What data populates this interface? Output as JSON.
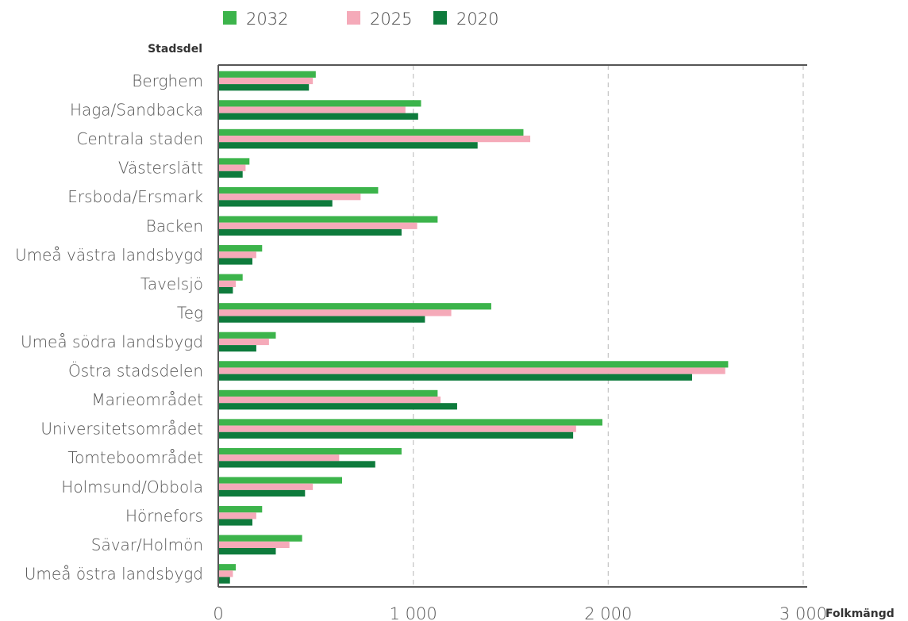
{
  "chart_data": {
    "type": "bar",
    "orientation": "horizontal",
    "ylabel": "Stadsdel",
    "xlabel": "Folkmängd",
    "xlim": [
      0,
      3000
    ],
    "xticks": [
      0,
      1000,
      2000,
      3000
    ],
    "xtick_labels": [
      "0",
      "1 000",
      "2 000",
      "3 000"
    ],
    "grid": "vertical dashed",
    "legend_position": "top",
    "categories": [
      "Berghem",
      "Haga/Sandbacka",
      "Centrala staden",
      "Västerslätt",
      "Ersboda/Ersmark",
      "Backen",
      "Umeå västra landsbygd",
      "Tavelsjö",
      "Teg",
      "Umeå södra landsbygd",
      "Östra stadsdelen",
      "Marieområdet",
      "Universitetsområdet",
      "Tomteboområdet",
      "Holmsund/Obbola",
      "Hörnefors",
      "Sävar/Holmön",
      "Umeå östra landsbygd"
    ],
    "series": [
      {
        "name": "2032",
        "color": "#3cb44b",
        "values": [
          500,
          1040,
          1565,
          160,
          820,
          1125,
          225,
          125,
          1400,
          295,
          2615,
          1125,
          1970,
          940,
          635,
          225,
          430,
          90
        ]
      },
      {
        "name": "2025",
        "color": "#f5aab9",
        "values": [
          485,
          960,
          1600,
          140,
          730,
          1020,
          195,
          90,
          1195,
          260,
          2600,
          1140,
          1835,
          620,
          485,
          195,
          365,
          75
        ]
      },
      {
        "name": "2020",
        "color": "#0e7b3c",
        "values": [
          465,
          1025,
          1330,
          125,
          585,
          940,
          175,
          75,
          1060,
          195,
          2430,
          1225,
          1820,
          805,
          445,
          175,
          295,
          60
        ]
      }
    ]
  }
}
